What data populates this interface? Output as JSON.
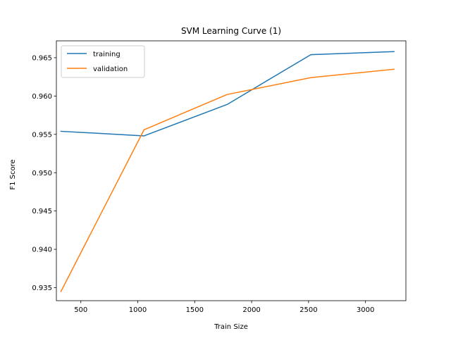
{
  "chart_data": {
    "type": "line",
    "title": "SVM Learning Curve (1)",
    "xlabel": "Train Size",
    "ylabel": "F1 Score",
    "xlim": [
      285,
      3355
    ],
    "ylim": [
      0.9333,
      0.9672
    ],
    "xticks": [
      500,
      1000,
      1500,
      2000,
      2500,
      3000
    ],
    "xtick_labels": [
      "500",
      "1000",
      "1500",
      "2000",
      "2500",
      "3000"
    ],
    "yticks": [
      0.935,
      0.94,
      0.945,
      0.95,
      0.955,
      0.96,
      0.965
    ],
    "ytick_labels": [
      "0.935",
      "0.940",
      "0.945",
      "0.950",
      "0.955",
      "0.960",
      "0.965"
    ],
    "grid": false,
    "legend_position": "upper-left",
    "x": [
      325,
      1055,
      1785,
      2520,
      3250
    ],
    "series": [
      {
        "name": "training",
        "color": "#1f77b4",
        "values": [
          0.9554,
          0.9548,
          0.9589,
          0.9654,
          0.9658
        ]
      },
      {
        "name": "validation",
        "color": "#ff7f0e",
        "values": [
          0.9345,
          0.9556,
          0.9602,
          0.9624,
          0.9635
        ]
      }
    ]
  }
}
